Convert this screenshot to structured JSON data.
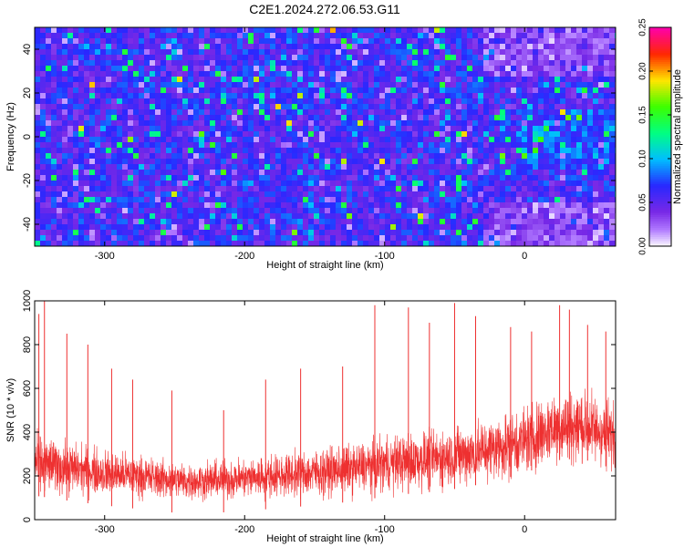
{
  "title": "C2E1.2024.272.06.53.G11",
  "chart_data": [
    {
      "type": "heatmap",
      "title": "C2E1.2024.272.06.53.G11",
      "xlabel": "Height of straight line (km)",
      "ylabel": "Frequency (Hz)",
      "xlim": [
        -350,
        65
      ],
      "ylim": [
        -50,
        50
      ],
      "xticks": [
        "-300",
        "-200",
        "-100",
        "0"
      ],
      "yticks": [
        "-40",
        "-20",
        "0",
        "20",
        "40"
      ],
      "colorbar": {
        "label": "Normalized spectral amplitude",
        "range": [
          0.0,
          0.25
        ],
        "ticks": [
          "0.00",
          "0.05",
          "0.10",
          "0.15",
          "0.20",
          "0.25"
        ]
      },
      "description_of_values": "amplitude field mostly 0.03-0.10 (blue/purple) with scattered peaks 0.10-0.20; quieter/whiter region near x=-20..65 km at |f|>30 Hz"
    },
    {
      "type": "line",
      "xlabel": "Height of straight line (km)",
      "ylabel": "SNR (10 * v/v)",
      "xlim": [
        -350,
        65
      ],
      "ylim": [
        0,
        1000
      ],
      "xticks": [
        "-300",
        "-200",
        "-100",
        "0"
      ],
      "yticks": [
        "0",
        "200",
        "400",
        "600",
        "800",
        "1000"
      ],
      "color": "#ee3030",
      "envelope": {
        "x": [
          -350,
          -330,
          -300,
          -270,
          -240,
          -210,
          -180,
          -150,
          -120,
          -100,
          -80,
          -60,
          -40,
          -20,
          0,
          20,
          40,
          65
        ],
        "center": [
          260,
          240,
          215,
          195,
          175,
          185,
          200,
          215,
          235,
          255,
          270,
          280,
          300,
          330,
          360,
          420,
          430,
          380
        ],
        "spread": [
          140,
          130,
          110,
          100,
          90,
          95,
          105,
          115,
          125,
          135,
          140,
          145,
          150,
          160,
          170,
          180,
          180,
          170
        ]
      },
      "spikes": [
        {
          "x": -347,
          "y": 940
        },
        {
          "x": -343,
          "y": 1000
        },
        {
          "x": -327,
          "y": 850
        },
        {
          "x": -312,
          "y": 800
        },
        {
          "x": -295,
          "y": 690
        },
        {
          "x": -280,
          "y": 640
        },
        {
          "x": -252,
          "y": 590
        },
        {
          "x": -215,
          "y": 500
        },
        {
          "x": -185,
          "y": 640
        },
        {
          "x": -160,
          "y": 690
        },
        {
          "x": -130,
          "y": 700
        },
        {
          "x": -107,
          "y": 980
        },
        {
          "x": -83,
          "y": 970
        },
        {
          "x": -68,
          "y": 900
        },
        {
          "x": -50,
          "y": 990
        },
        {
          "x": -35,
          "y": 930
        },
        {
          "x": -10,
          "y": 880
        },
        {
          "x": 5,
          "y": 860
        },
        {
          "x": 25,
          "y": 980
        },
        {
          "x": 32,
          "y": 960
        },
        {
          "x": 45,
          "y": 890
        },
        {
          "x": 58,
          "y": 860
        }
      ]
    }
  ]
}
